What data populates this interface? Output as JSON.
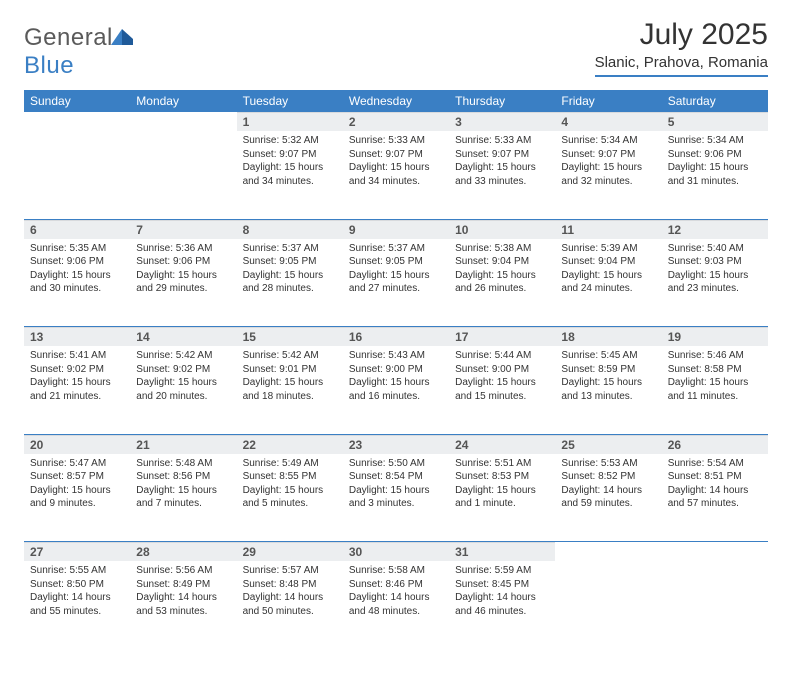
{
  "logo": {
    "text_a": "General",
    "text_b": "Blue"
  },
  "header": {
    "month_title": "July 2025",
    "location": "Slanic, Prahova, Romania"
  },
  "colors": {
    "accent": "#3a7fc4",
    "header_bg": "#3a7fc4",
    "header_text": "#ffffff",
    "daynum_bg": "#eceef0",
    "body_text": "#333333"
  },
  "weekdays": [
    "Sunday",
    "Monday",
    "Tuesday",
    "Wednesday",
    "Thursday",
    "Friday",
    "Saturday"
  ],
  "weeks": [
    [
      null,
      null,
      {
        "d": "1",
        "sunrise": "5:32 AM",
        "sunset": "9:07 PM",
        "daylight": "15 hours and 34 minutes."
      },
      {
        "d": "2",
        "sunrise": "5:33 AM",
        "sunset": "9:07 PM",
        "daylight": "15 hours and 34 minutes."
      },
      {
        "d": "3",
        "sunrise": "5:33 AM",
        "sunset": "9:07 PM",
        "daylight": "15 hours and 33 minutes."
      },
      {
        "d": "4",
        "sunrise": "5:34 AM",
        "sunset": "9:07 PM",
        "daylight": "15 hours and 32 minutes."
      },
      {
        "d": "5",
        "sunrise": "5:34 AM",
        "sunset": "9:06 PM",
        "daylight": "15 hours and 31 minutes."
      }
    ],
    [
      {
        "d": "6",
        "sunrise": "5:35 AM",
        "sunset": "9:06 PM",
        "daylight": "15 hours and 30 minutes."
      },
      {
        "d": "7",
        "sunrise": "5:36 AM",
        "sunset": "9:06 PM",
        "daylight": "15 hours and 29 minutes."
      },
      {
        "d": "8",
        "sunrise": "5:37 AM",
        "sunset": "9:05 PM",
        "daylight": "15 hours and 28 minutes."
      },
      {
        "d": "9",
        "sunrise": "5:37 AM",
        "sunset": "9:05 PM",
        "daylight": "15 hours and 27 minutes."
      },
      {
        "d": "10",
        "sunrise": "5:38 AM",
        "sunset": "9:04 PM",
        "daylight": "15 hours and 26 minutes."
      },
      {
        "d": "11",
        "sunrise": "5:39 AM",
        "sunset": "9:04 PM",
        "daylight": "15 hours and 24 minutes."
      },
      {
        "d": "12",
        "sunrise": "5:40 AM",
        "sunset": "9:03 PM",
        "daylight": "15 hours and 23 minutes."
      }
    ],
    [
      {
        "d": "13",
        "sunrise": "5:41 AM",
        "sunset": "9:02 PM",
        "daylight": "15 hours and 21 minutes."
      },
      {
        "d": "14",
        "sunrise": "5:42 AM",
        "sunset": "9:02 PM",
        "daylight": "15 hours and 20 minutes."
      },
      {
        "d": "15",
        "sunrise": "5:42 AM",
        "sunset": "9:01 PM",
        "daylight": "15 hours and 18 minutes."
      },
      {
        "d": "16",
        "sunrise": "5:43 AM",
        "sunset": "9:00 PM",
        "daylight": "15 hours and 16 minutes."
      },
      {
        "d": "17",
        "sunrise": "5:44 AM",
        "sunset": "9:00 PM",
        "daylight": "15 hours and 15 minutes."
      },
      {
        "d": "18",
        "sunrise": "5:45 AM",
        "sunset": "8:59 PM",
        "daylight": "15 hours and 13 minutes."
      },
      {
        "d": "19",
        "sunrise": "5:46 AM",
        "sunset": "8:58 PM",
        "daylight": "15 hours and 11 minutes."
      }
    ],
    [
      {
        "d": "20",
        "sunrise": "5:47 AM",
        "sunset": "8:57 PM",
        "daylight": "15 hours and 9 minutes."
      },
      {
        "d": "21",
        "sunrise": "5:48 AM",
        "sunset": "8:56 PM",
        "daylight": "15 hours and 7 minutes."
      },
      {
        "d": "22",
        "sunrise": "5:49 AM",
        "sunset": "8:55 PM",
        "daylight": "15 hours and 5 minutes."
      },
      {
        "d": "23",
        "sunrise": "5:50 AM",
        "sunset": "8:54 PM",
        "daylight": "15 hours and 3 minutes."
      },
      {
        "d": "24",
        "sunrise": "5:51 AM",
        "sunset": "8:53 PM",
        "daylight": "15 hours and 1 minute."
      },
      {
        "d": "25",
        "sunrise": "5:53 AM",
        "sunset": "8:52 PM",
        "daylight": "14 hours and 59 minutes."
      },
      {
        "d": "26",
        "sunrise": "5:54 AM",
        "sunset": "8:51 PM",
        "daylight": "14 hours and 57 minutes."
      }
    ],
    [
      {
        "d": "27",
        "sunrise": "5:55 AM",
        "sunset": "8:50 PM",
        "daylight": "14 hours and 55 minutes."
      },
      {
        "d": "28",
        "sunrise": "5:56 AM",
        "sunset": "8:49 PM",
        "daylight": "14 hours and 53 minutes."
      },
      {
        "d": "29",
        "sunrise": "5:57 AM",
        "sunset": "8:48 PM",
        "daylight": "14 hours and 50 minutes."
      },
      {
        "d": "30",
        "sunrise": "5:58 AM",
        "sunset": "8:46 PM",
        "daylight": "14 hours and 48 minutes."
      },
      {
        "d": "31",
        "sunrise": "5:59 AM",
        "sunset": "8:45 PM",
        "daylight": "14 hours and 46 minutes."
      },
      null,
      null
    ]
  ],
  "labels": {
    "sunrise": "Sunrise:",
    "sunset": "Sunset:",
    "daylight": "Daylight:"
  }
}
